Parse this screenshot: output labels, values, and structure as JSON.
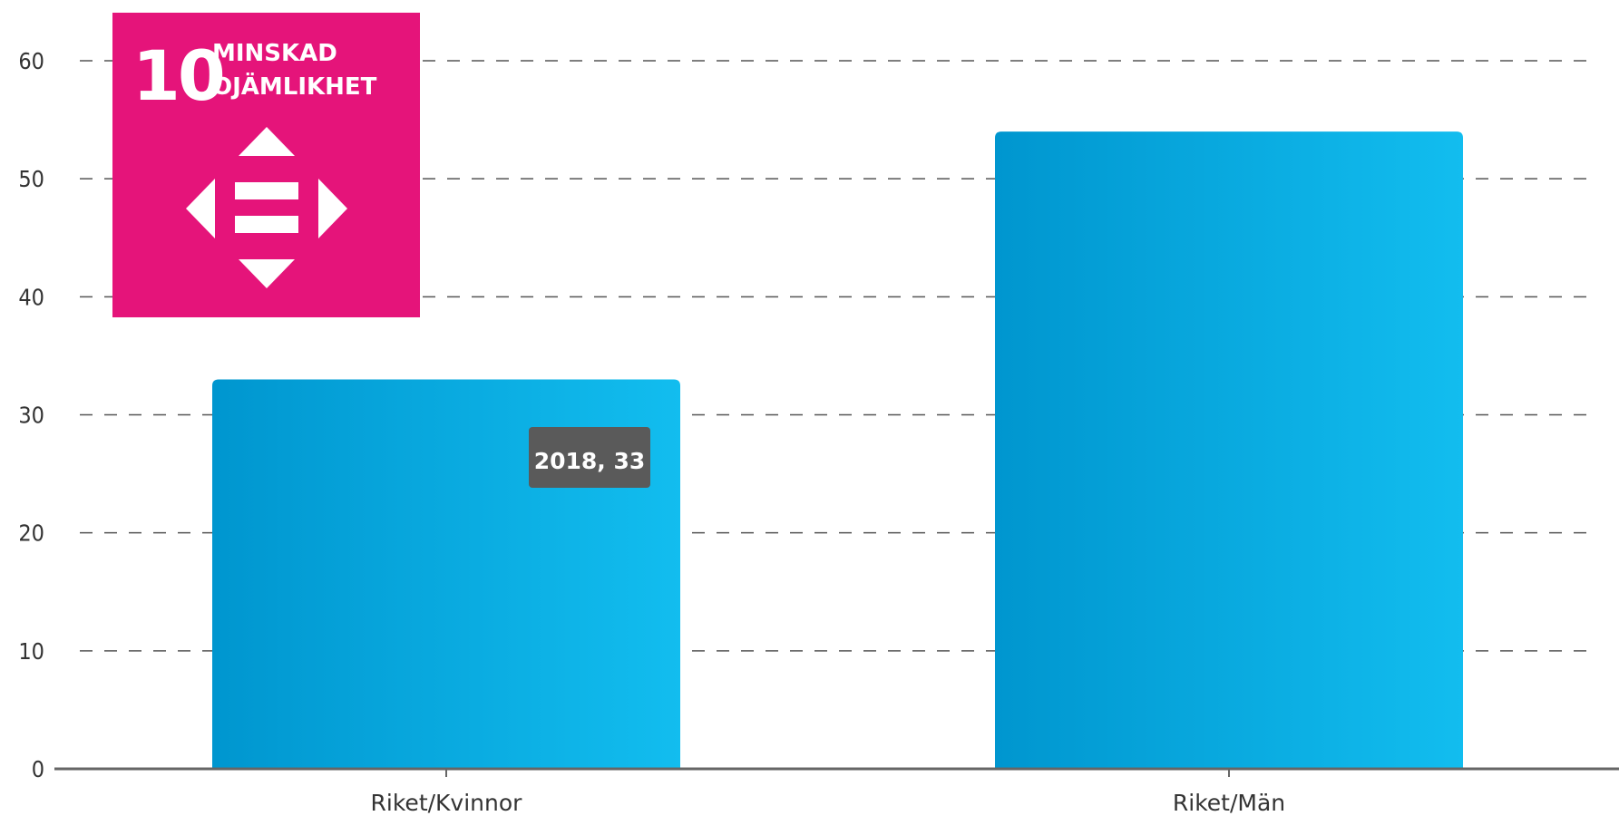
{
  "sdg_logo": {
    "number": "10",
    "line1": "MINSKAD",
    "line2": "OJÄMLIKHET",
    "color": "#E5147A",
    "icon": "equality-arrows-icon"
  },
  "tooltip": {
    "text": "2018, 33",
    "background": "#5a5a5a"
  },
  "colors": {
    "bar_dark": "#0096CF",
    "bar_light": "#12BDEF",
    "grid": "#555555",
    "axis": "#666666"
  },
  "chart_data": {
    "type": "bar",
    "categories": [
      "Riket/Kvinnor",
      "Riket/Män"
    ],
    "values": [
      33,
      54
    ],
    "yticks": [
      0,
      10,
      20,
      30,
      40,
      50,
      60
    ],
    "ylim": [
      0,
      60
    ],
    "grid": "dashed horizontal",
    "title": "",
    "xlabel": "",
    "ylabel": ""
  }
}
